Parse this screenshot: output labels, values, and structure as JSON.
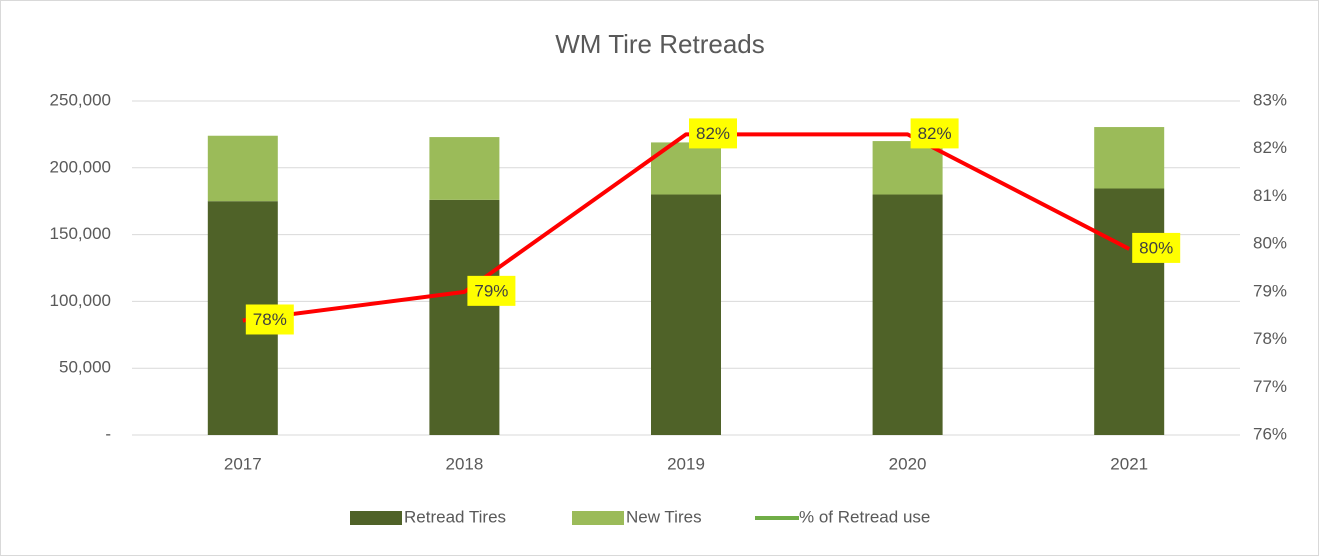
{
  "chart_data": {
    "type": "bar",
    "stacked": true,
    "title": "WM Tire Retreads",
    "categories": [
      "2017",
      "2018",
      "2019",
      "2020",
      "2021"
    ],
    "series": [
      {
        "name": "Retread Tires",
        "color": "#4f6228",
        "values": [
          175000,
          176000,
          180000,
          180000,
          184500
        ]
      },
      {
        "name": "New Tires",
        "color": "#9bbb59",
        "values": [
          49000,
          47000,
          39000,
          40000,
          46000
        ]
      },
      {
        "name": "% of Retread use",
        "type": "line",
        "axis": "y2",
        "color": "#ff0000",
        "legend_color": "#70ad47",
        "values": [
          78.4,
          79.0,
          82.3,
          82.3,
          79.9
        ],
        "value_labels": [
          "78%",
          "79%",
          "82%",
          "82%",
          "80%"
        ],
        "label_background": "#ffff00"
      }
    ],
    "ylim": [
      0,
      250000
    ],
    "yticks": [
      {
        "value": 0,
        "label": "-"
      },
      {
        "value": 50000,
        "label": "50,000"
      },
      {
        "value": 100000,
        "label": "100,000"
      },
      {
        "value": 150000,
        "label": "150,000"
      },
      {
        "value": 200000,
        "label": "200,000"
      },
      {
        "value": 250000,
        "label": "250,000"
      }
    ],
    "y2lim": [
      76,
      83
    ],
    "y2ticks": [
      {
        "value": 76,
        "label": "76%"
      },
      {
        "value": 77,
        "label": "77%"
      },
      {
        "value": 78,
        "label": "78%"
      },
      {
        "value": 79,
        "label": "79%"
      },
      {
        "value": 80,
        "label": "80%"
      },
      {
        "value": 81,
        "label": "81%"
      },
      {
        "value": 82,
        "label": "82%"
      },
      {
        "value": 83,
        "label": "83%"
      }
    ],
    "grid": true,
    "legend": "bottom"
  }
}
